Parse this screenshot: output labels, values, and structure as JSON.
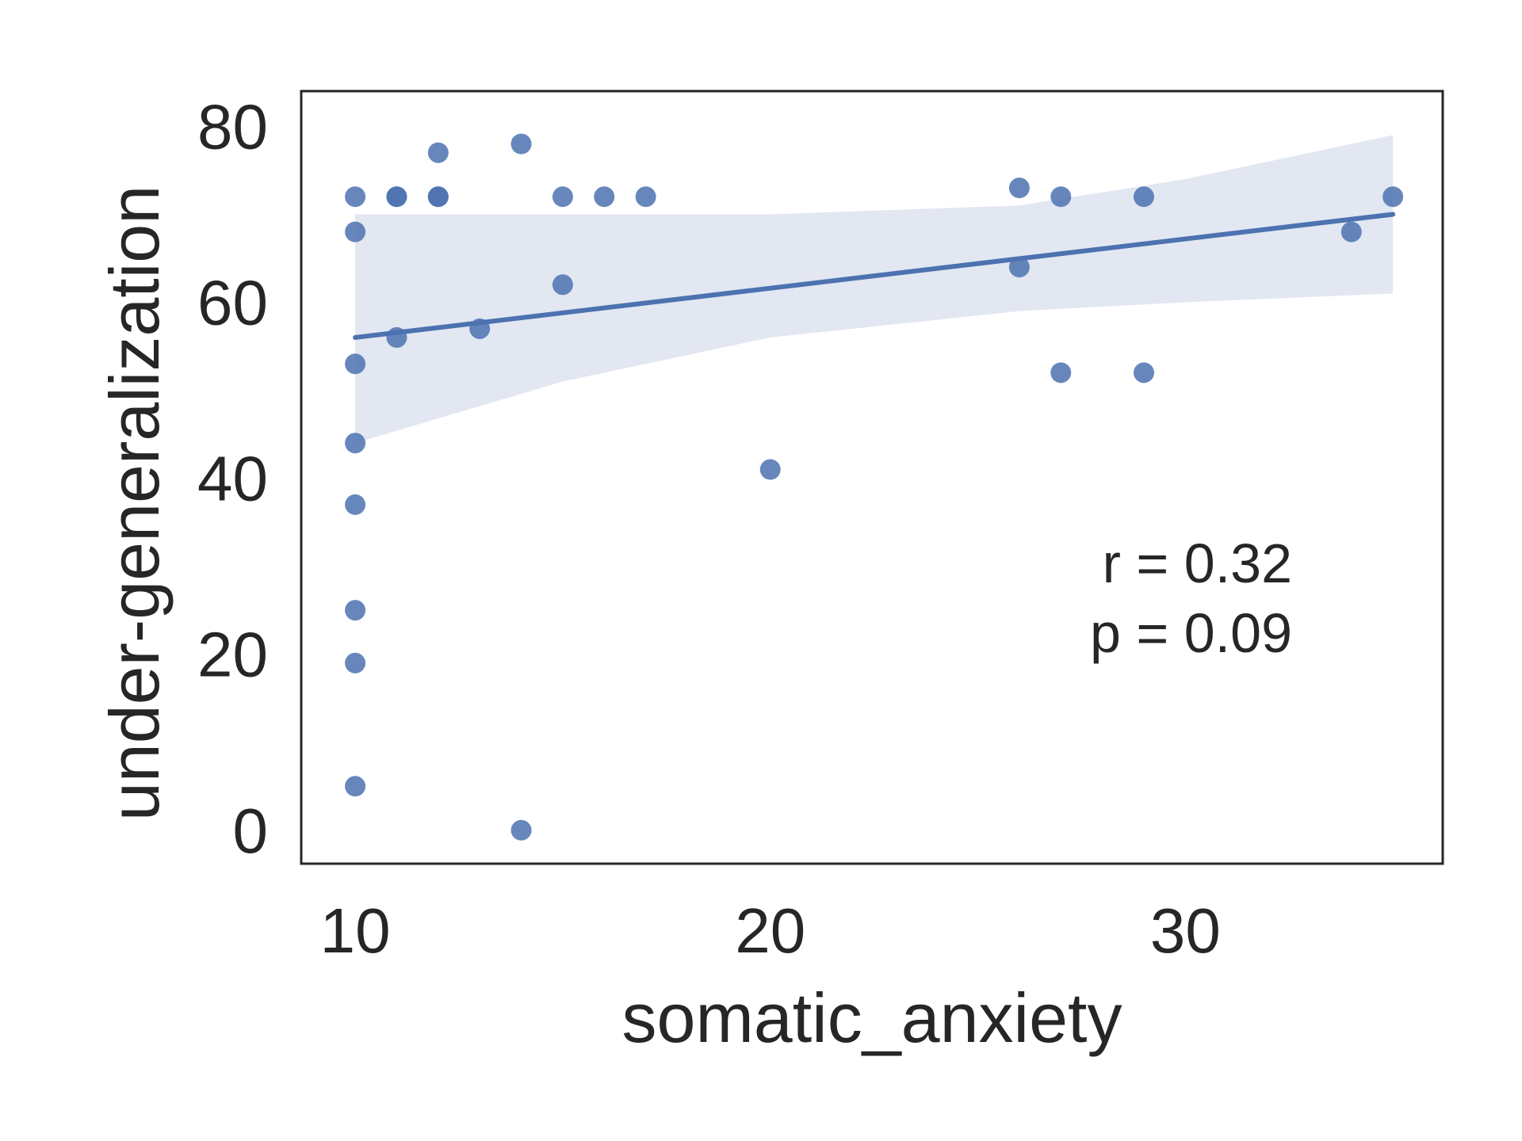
{
  "chart_data": {
    "type": "scatter",
    "title": "",
    "xlabel": "somatic_anxiety",
    "ylabel": "under-generalization",
    "xlim": [
      8.7,
      36.2
    ],
    "ylim": [
      -3.8,
      84.0
    ],
    "xticks": [
      10,
      20,
      30
    ],
    "yticks": [
      0,
      20,
      40,
      60,
      80
    ],
    "grid": false,
    "point_color": "#4c72b0",
    "line_color": "#4c72b0",
    "band_color": "#dde3f0",
    "points": [
      {
        "x": 10,
        "y": 72
      },
      {
        "x": 10,
        "y": 68
      },
      {
        "x": 10,
        "y": 53
      },
      {
        "x": 10,
        "y": 44
      },
      {
        "x": 10,
        "y": 37
      },
      {
        "x": 10,
        "y": 25
      },
      {
        "x": 10,
        "y": 19
      },
      {
        "x": 10,
        "y": 5
      },
      {
        "x": 11,
        "y": 72
      },
      {
        "x": 11,
        "y": 72
      },
      {
        "x": 11,
        "y": 56
      },
      {
        "x": 12,
        "y": 77
      },
      {
        "x": 12,
        "y": 72
      },
      {
        "x": 12,
        "y": 72
      },
      {
        "x": 13,
        "y": 57
      },
      {
        "x": 14,
        "y": 78
      },
      {
        "x": 14,
        "y": 0
      },
      {
        "x": 15,
        "y": 72
      },
      {
        "x": 15,
        "y": 62
      },
      {
        "x": 16,
        "y": 72
      },
      {
        "x": 17,
        "y": 72
      },
      {
        "x": 20,
        "y": 41
      },
      {
        "x": 26,
        "y": 73
      },
      {
        "x": 26,
        "y": 64
      },
      {
        "x": 27,
        "y": 72
      },
      {
        "x": 27,
        "y": 52
      },
      {
        "x": 29,
        "y": 72
      },
      {
        "x": 29,
        "y": 52
      },
      {
        "x": 34,
        "y": 68
      },
      {
        "x": 35,
        "y": 72
      }
    ],
    "regression": {
      "x": [
        10,
        35
      ],
      "y": [
        56,
        70
      ]
    },
    "confidence_band": {
      "x": [
        10,
        15,
        20,
        26,
        30,
        35
      ],
      "upper": [
        70,
        70,
        70,
        71,
        74,
        79
      ],
      "lower": [
        44,
        51,
        56,
        59,
        60,
        61
      ]
    },
    "annotation": {
      "lines": [
        "r = 0.32",
        "p = 0.09"
      ]
    }
  }
}
